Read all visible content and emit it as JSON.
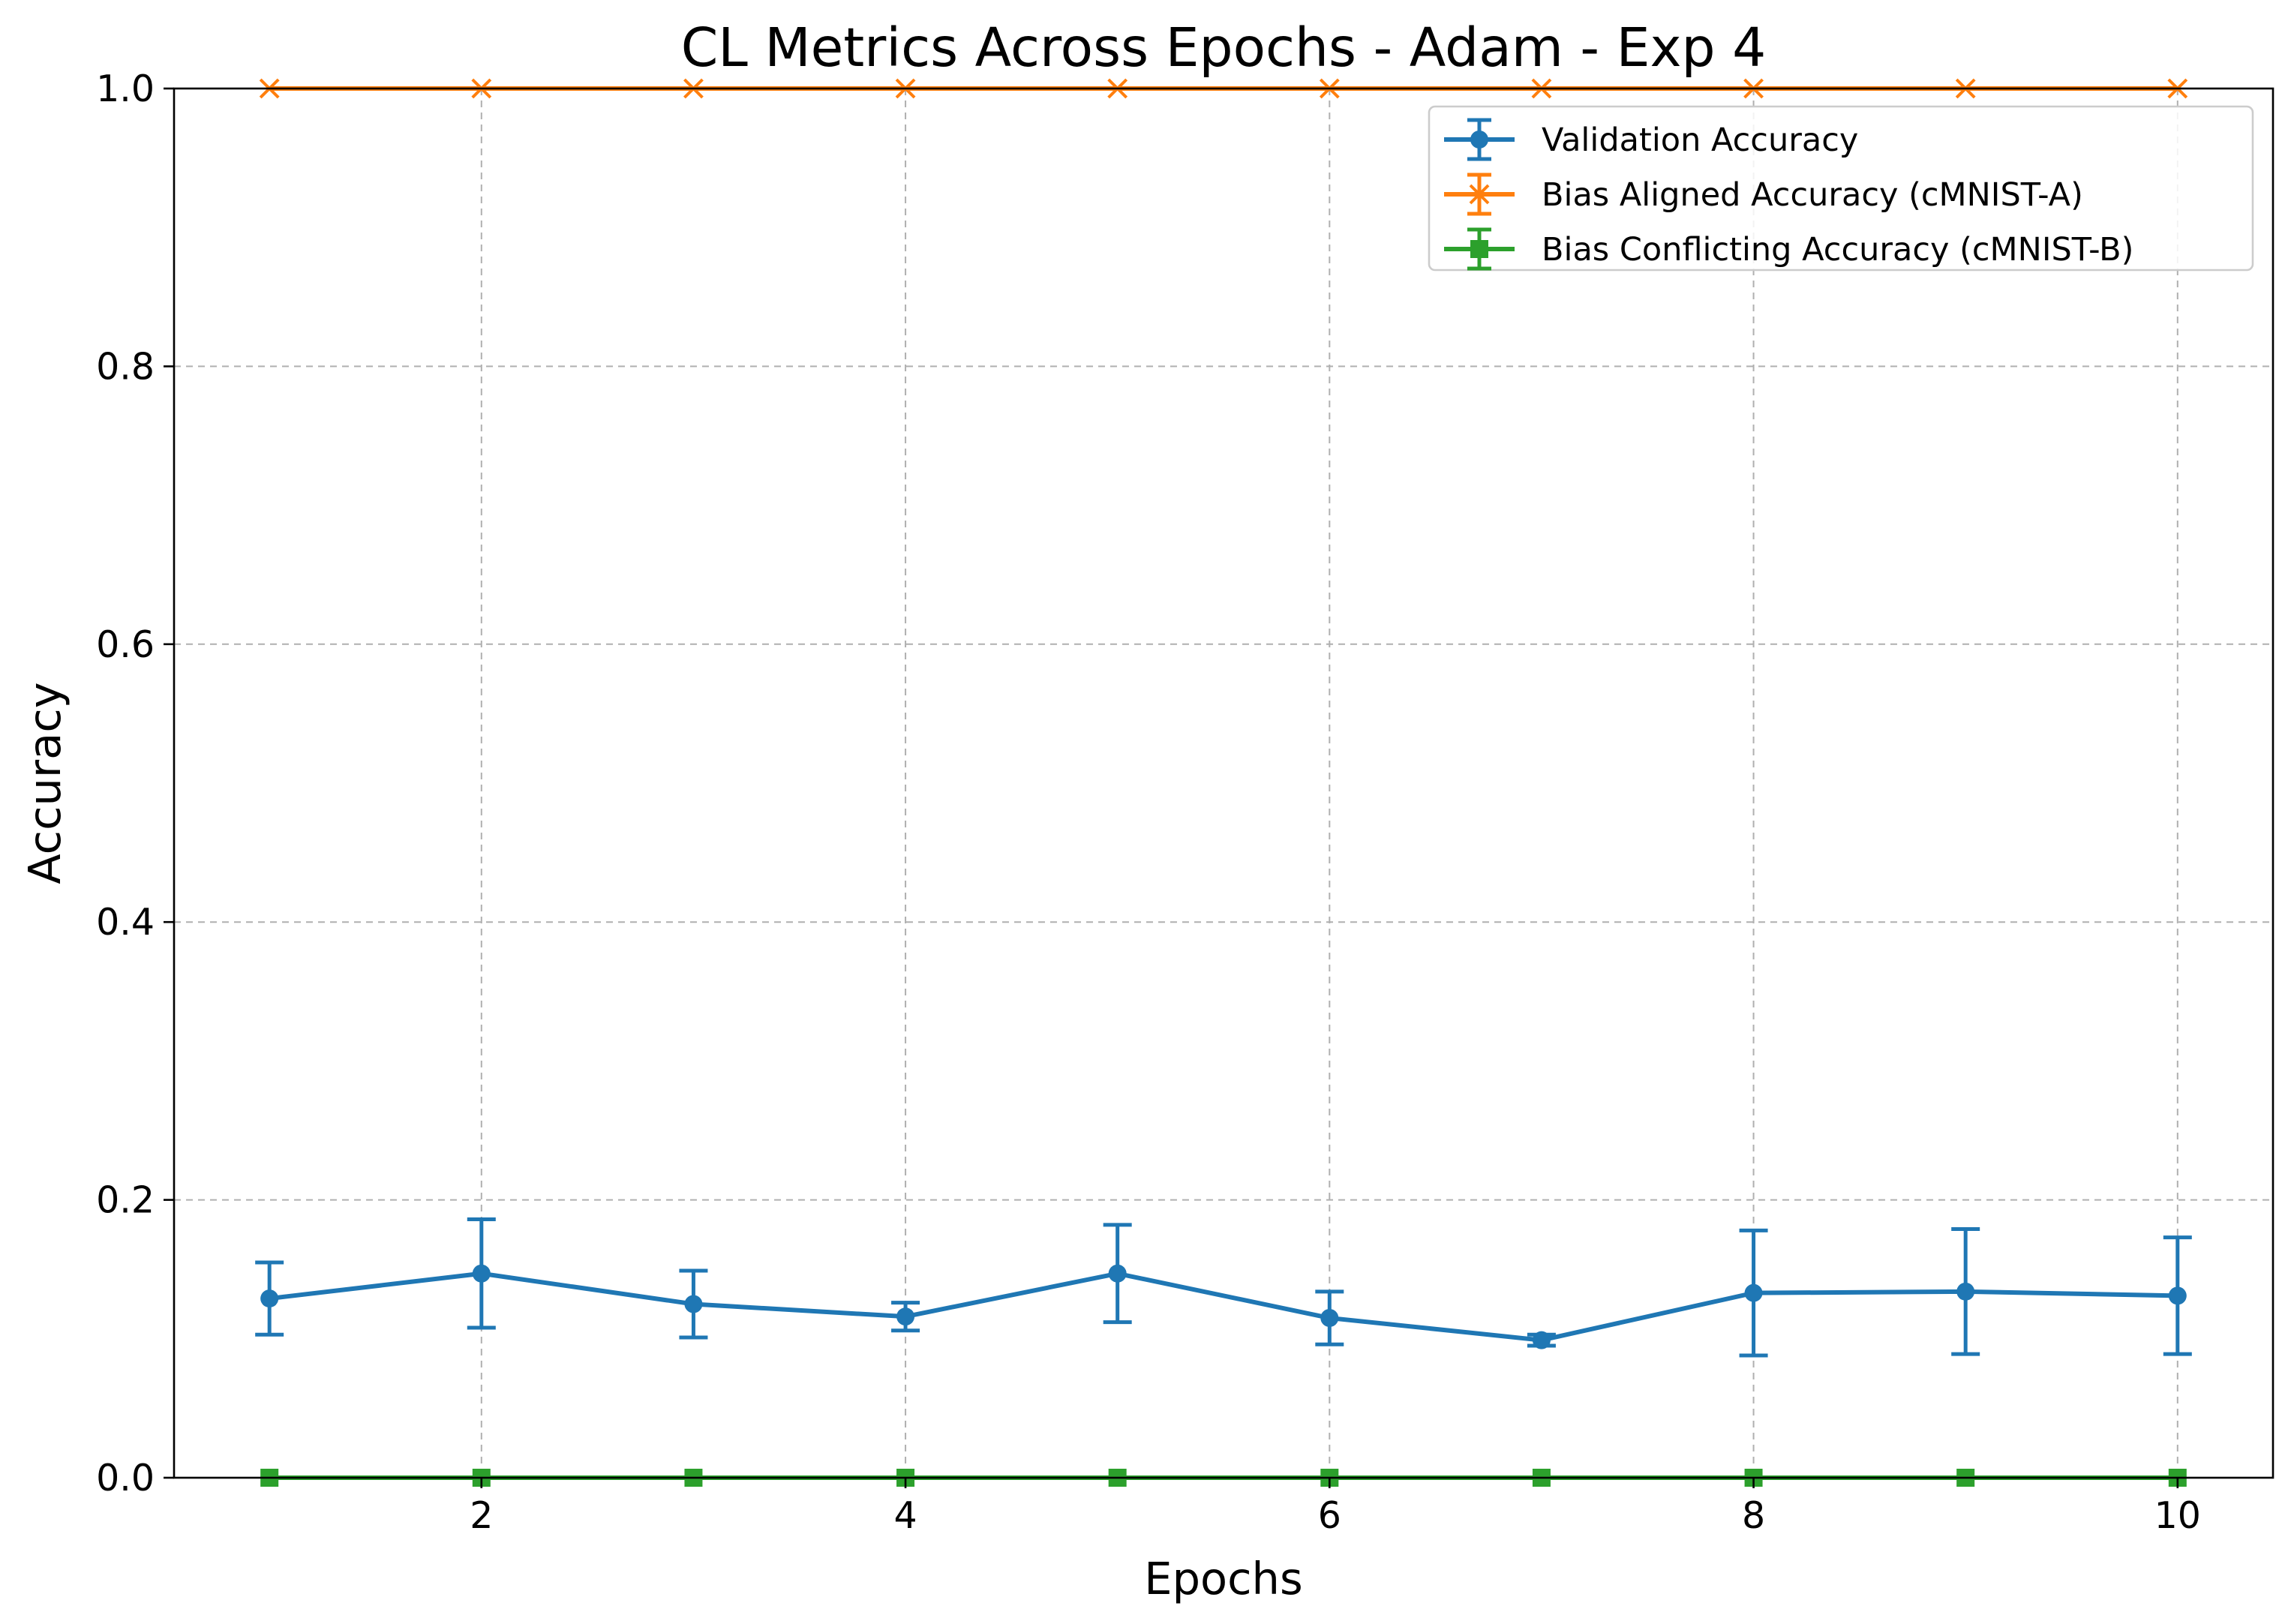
{
  "chart_data": {
    "type": "line",
    "title": "CL Metrics Across Epochs - Adam - Exp 4",
    "xlabel": "Epochs",
    "ylabel": "Accuracy",
    "x": [
      1,
      2,
      3,
      4,
      5,
      6,
      7,
      8,
      9,
      10
    ],
    "xlim": [
      0.55,
      10.45
    ],
    "ylim": [
      0,
      1.0
    ],
    "xticks": [
      2,
      4,
      6,
      8,
      10
    ],
    "yticks": [
      0.0,
      0.2,
      0.4,
      0.6,
      0.8,
      1.0
    ],
    "grid": true,
    "legend_position": "top-right",
    "series": [
      {
        "name": "Validation Accuracy",
        "color": "#1f77b4",
        "marker": "circle",
        "values": [
          0.129,
          0.147,
          0.125,
          0.116,
          0.147,
          0.115,
          0.099,
          0.133,
          0.134,
          0.131
        ],
        "errors": [
          0.026,
          0.039,
          0.024,
          0.01,
          0.035,
          0.019,
          0.004,
          0.045,
          0.045,
          0.042
        ]
      },
      {
        "name": "Bias Aligned Accuracy (cMNIST-A)",
        "color": "#ff7f0e",
        "marker": "x",
        "values": [
          1.0,
          1.0,
          1.0,
          1.0,
          1.0,
          1.0,
          1.0,
          1.0,
          1.0,
          1.0
        ],
        "errors": [
          0,
          0,
          0,
          0,
          0,
          0,
          0,
          0,
          0,
          0
        ]
      },
      {
        "name": "Bias Conflicting Accuracy (cMNIST-B)",
        "color": "#2ca02c",
        "marker": "square",
        "values": [
          0.0,
          0.0,
          0.0,
          0.0,
          0.0,
          0.0,
          0.0,
          0.0,
          0.0,
          0.0
        ],
        "errors": [
          0,
          0,
          0,
          0,
          0,
          0,
          0,
          0,
          0,
          0
        ]
      }
    ]
  }
}
